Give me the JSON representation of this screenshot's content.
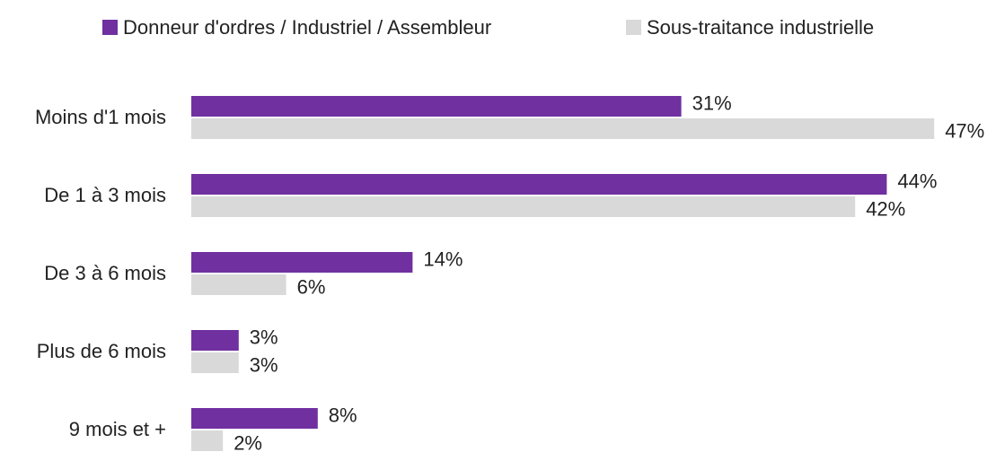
{
  "chart_data": {
    "type": "bar",
    "orientation": "horizontal",
    "categories": [
      "Moins d'1 mois",
      "De 1 à 3 mois",
      "De 3 à 6 mois",
      "Plus de 6 mois",
      "9 mois et +"
    ],
    "series": [
      {
        "name": "Donneur d'ordres / Industriel / Assembleur",
        "color": "#7030a0",
        "values": [
          31,
          44,
          14,
          3,
          8
        ],
        "value_labels": [
          "31%",
          "44%",
          "14%",
          "3%",
          "8%"
        ]
      },
      {
        "name": "Sous-traitance industrielle",
        "color": "#d9d9d9",
        "values": [
          47,
          42,
          6,
          3,
          2
        ],
        "value_labels": [
          "47%",
          "42%",
          "6%",
          "3%",
          "2%"
        ]
      }
    ],
    "legend": "top"
  }
}
